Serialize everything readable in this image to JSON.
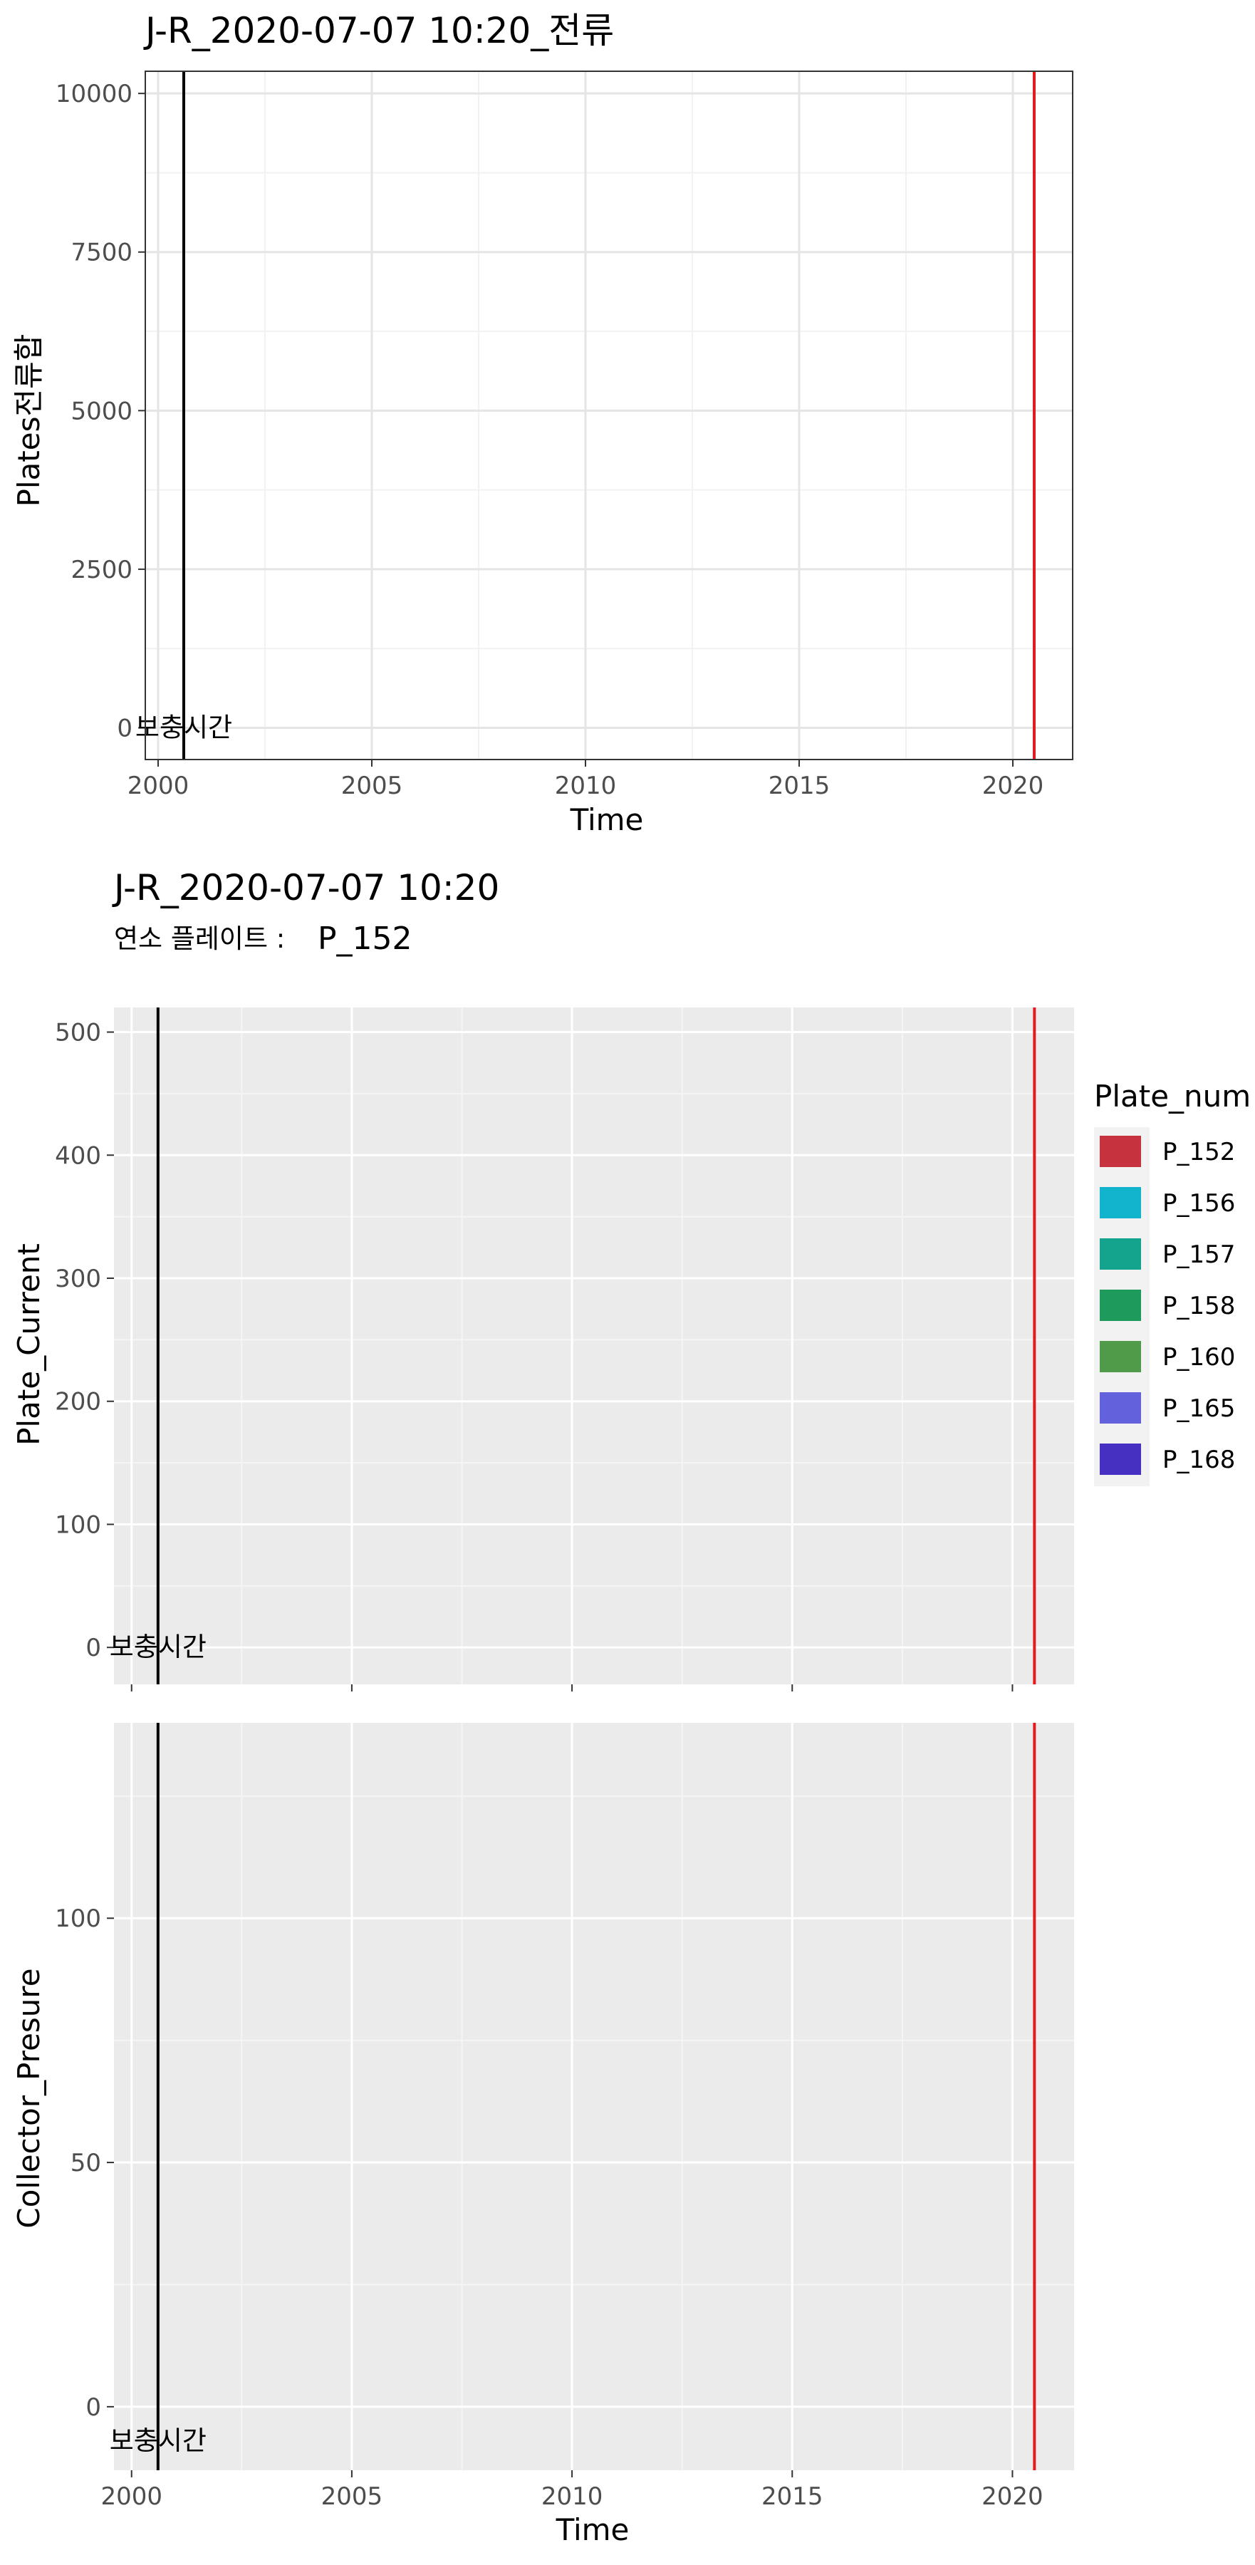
{
  "chart_data": [
    {
      "type": "line",
      "title": "J-R_2020-07-07 10:20_전류",
      "xlabel": "Time",
      "ylabel": "Plates전류합",
      "xlim": [
        1999.7,
        2021.4
      ],
      "ylim": [
        -500,
        10350
      ],
      "x_ticks": [
        2000,
        2005,
        2010,
        2015,
        2020
      ],
      "x_tick_labels": [
        "2000",
        "2005",
        "2010",
        "2015",
        "2020"
      ],
      "y_ticks": [
        0,
        2500,
        5000,
        7500,
        10000
      ],
      "y_tick_labels": [
        "0",
        "2500",
        "5000",
        "7500",
        "10000"
      ],
      "theme": "white background, light grey grid, black panel border",
      "vlines": [
        {
          "x": 2000.6,
          "color": "#000000"
        },
        {
          "x": 2020.5,
          "color": "#e41a1c"
        }
      ],
      "annotations": [
        {
          "text": "보충시간",
          "x": 2000.6,
          "y": 0
        }
      ],
      "series": []
    },
    {
      "type": "line",
      "title": "J-R_2020-07-07 10:20",
      "subtitle_label": "연소 플레이트 :",
      "subtitle_value": "P_152",
      "xlabel": "Time",
      "ylabel": "Plate_Current",
      "xlim": [
        1999.6,
        2021.4
      ],
      "ylim": [
        -30,
        520
      ],
      "x_ticks": [
        2000,
        2005,
        2010,
        2015,
        2020
      ],
      "y_ticks": [
        0,
        100,
        200,
        300,
        400,
        500
      ],
      "y_tick_labels": [
        "0",
        "100",
        "200",
        "300",
        "400",
        "500"
      ],
      "theme": "grey panel background, white grid",
      "vlines": [
        {
          "x": 2000.6,
          "color": "#000000"
        },
        {
          "x": 2020.5,
          "color": "#e41a1c"
        }
      ],
      "annotations": [
        {
          "text": "보충시간",
          "x": 2000.6,
          "y": 0
        }
      ],
      "legend_title": "Plate_num",
      "legend_position": "right",
      "legend": [
        {
          "name": "P_152",
          "color": "#c7323f"
        },
        {
          "name": "P_156",
          "color": "#12b3cc"
        },
        {
          "name": "P_157",
          "color": "#14a48e"
        },
        {
          "name": "P_158",
          "color": "#1d9a5c"
        },
        {
          "name": "P_160",
          "color": "#4f9b4a"
        },
        {
          "name": "P_165",
          "color": "#6362dc"
        },
        {
          "name": "P_168",
          "color": "#4630c1"
        }
      ],
      "series": []
    },
    {
      "type": "line",
      "xlabel": "Time",
      "ylabel": "Collector_Presure",
      "xlim": [
        1999.6,
        2021.4
      ],
      "ylim": [
        -13,
        140
      ],
      "x_ticks": [
        2000,
        2005,
        2010,
        2015,
        2020
      ],
      "x_tick_labels": [
        "2000",
        "2005",
        "2010",
        "2015",
        "2020"
      ],
      "y_ticks": [
        0,
        50,
        100
      ],
      "y_tick_labels": [
        "0",
        "50",
        "100"
      ],
      "theme": "grey panel background, white grid",
      "vlines": [
        {
          "x": 2000.6,
          "color": "#000000"
        },
        {
          "x": 2020.5,
          "color": "#e41a1c"
        }
      ],
      "annotations": [
        {
          "text": "보충시간",
          "x": 2000.6,
          "y": -7
        }
      ],
      "series": []
    }
  ]
}
